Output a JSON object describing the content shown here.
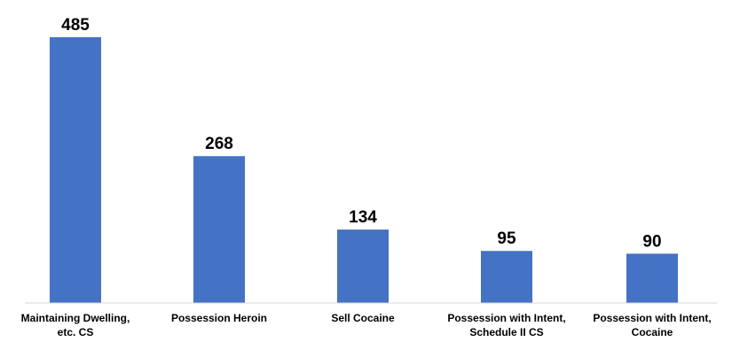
{
  "chart_data": {
    "type": "bar",
    "categories": [
      [
        "Maintaining Dwelling,",
        "etc. CS"
      ],
      [
        "Possession Heroin"
      ],
      [
        "Sell Cocaine"
      ],
      [
        "Possession with Intent,",
        "Schedule II CS"
      ],
      [
        "Possession with Intent,",
        "Cocaine"
      ]
    ],
    "values": [
      485,
      268,
      134,
      95,
      90
    ],
    "data_labels": [
      "485",
      "268",
      "134",
      "95",
      "90"
    ],
    "ylim": [
      0,
      485
    ],
    "grid": false,
    "legend": "none",
    "bar_color": "#4472C4"
  }
}
